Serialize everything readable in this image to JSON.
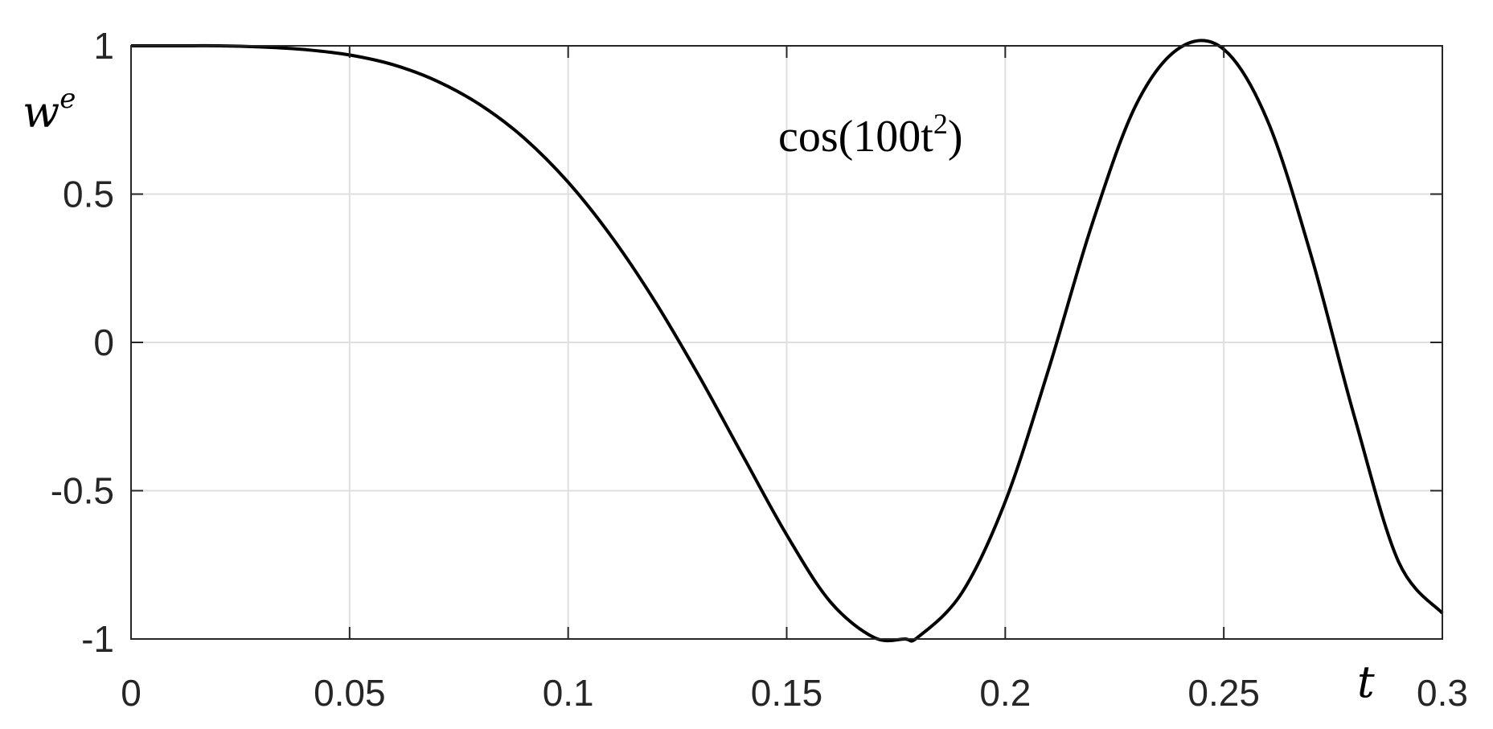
{
  "chart_data": {
    "type": "line",
    "title": "",
    "xlabel": "t",
    "ylabel": {
      "base": "w",
      "superscript": "e"
    },
    "xlim": [
      0,
      0.3
    ],
    "ylim": [
      -1,
      1
    ],
    "grid": true,
    "xticks": [
      0,
      0.05,
      0.1,
      0.15,
      0.2,
      0.25,
      0.3
    ],
    "xtick_labels": [
      "0",
      "0.05",
      "0.1",
      "0.15",
      "0.2",
      "0.25",
      "0.3"
    ],
    "yticks": [
      -1,
      -0.5,
      0,
      0.5,
      1
    ],
    "ytick_labels": [
      "-1",
      "-0.5",
      "0",
      "0.5",
      "1"
    ],
    "annotation": {
      "prefix": "cos(100t",
      "superscript": "2",
      "suffix": ")"
    },
    "series": [
      {
        "color": "#000000",
        "x": [
          0,
          0.01,
          0.02,
          0.03,
          0.04,
          0.05,
          0.06,
          0.07,
          0.08,
          0.09,
          0.1,
          0.11,
          0.12,
          0.13,
          0.14,
          0.15,
          0.16,
          0.17,
          0.177,
          0.18,
          0.19,
          0.2,
          0.21,
          0.22,
          0.23,
          0.24,
          0.25,
          0.26,
          0.27,
          0.28,
          0.29,
          0.3
        ],
        "y": [
          1,
          1,
          1,
          0.996,
          0.987,
          0.969,
          0.936,
          0.881,
          0.8,
          0.688,
          0.54,
          0.355,
          0.135,
          -0.115,
          -0.383,
          -0.649,
          -0.875,
          -0.995,
          -1,
          -0.994,
          -0.846,
          -0.537,
          -0.087,
          0.405,
          0.803,
          0.994,
          0.988,
          0.748,
          0.292,
          -0.257,
          -0.74,
          -0.913
        ]
      }
    ]
  }
}
